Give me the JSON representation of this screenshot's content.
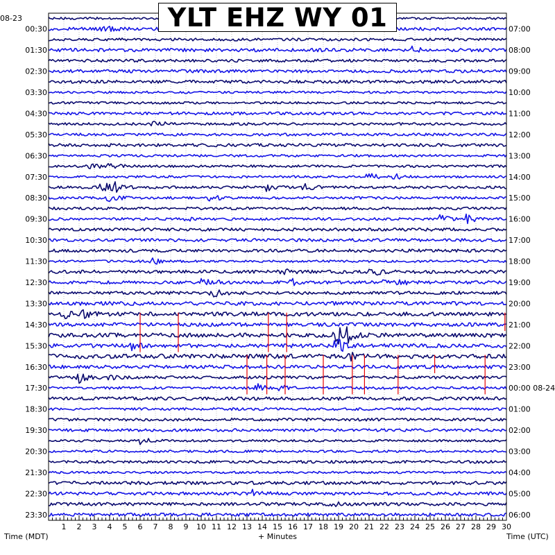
{
  "title": "YLT EHZ WY 01",
  "left_date": "08-23",
  "xlabel_left": "Time (MDT)",
  "xlabel_center": "+ Minutes",
  "xlabel_right": "Time (UTC)",
  "chart_data": {
    "type": "line",
    "subtype": "helicorder",
    "title": "YLT EHZ WY 01",
    "xlabel": "+ Minutes",
    "xlim": [
      0,
      30
    ],
    "x_ticks": [
      1,
      2,
      3,
      4,
      5,
      6,
      7,
      8,
      9,
      10,
      11,
      12,
      13,
      14,
      15,
      16,
      17,
      18,
      19,
      20,
      21,
      22,
      23,
      24,
      25,
      26,
      27,
      28,
      29,
      30
    ],
    "rows": 48,
    "row_minutes": 30,
    "left_labels": [
      "00:30",
      "01:30",
      "02:30",
      "03:30",
      "04:30",
      "05:30",
      "06:30",
      "07:30",
      "08:30",
      "09:30",
      "10:30",
      "11:30",
      "12:30",
      "13:30",
      "14:30",
      "15:30",
      "16:30",
      "17:30",
      "18:30",
      "19:30",
      "20:30",
      "21:30",
      "22:30",
      "23:30"
    ],
    "right_labels": [
      "07:00",
      "08:00",
      "09:00",
      "10:00",
      "11:00",
      "12:00",
      "13:00",
      "14:00",
      "15:00",
      "16:00",
      "17:00",
      "18:00",
      "19:00",
      "20:00",
      "21:00",
      "22:00",
      "23:00",
      "00:00 08-24",
      "01:00",
      "02:00",
      "03:00",
      "04:00",
      "05:00",
      "06:00"
    ],
    "trace_colors": [
      "#0a0a6e",
      "#1414e6"
    ],
    "marker_color": "#e60000",
    "events": [
      {
        "row": 1,
        "minute": 3.4,
        "amp": 6
      },
      {
        "row": 3,
        "minute": 23.8,
        "amp": 4
      },
      {
        "row": 10,
        "minute": 6.9,
        "amp": 6
      },
      {
        "row": 14,
        "minute": 2.6,
        "amp": 7
      },
      {
        "row": 14,
        "minute": 4.1,
        "amp": 5
      },
      {
        "row": 15,
        "minute": 20.9,
        "amp": 6
      },
      {
        "row": 15,
        "minute": 22.6,
        "amp": 5
      },
      {
        "row": 16,
        "minute": 3.5,
        "amp": 9
      },
      {
        "row": 16,
        "minute": 4.3,
        "amp": 6
      },
      {
        "row": 16,
        "minute": 14.2,
        "amp": 5
      },
      {
        "row": 16,
        "minute": 16.8,
        "amp": 6
      },
      {
        "row": 17,
        "minute": 4.0,
        "amp": 8
      },
      {
        "row": 17,
        "minute": 10.5,
        "amp": 6
      },
      {
        "row": 19,
        "minute": 8.6,
        "amp": 6
      },
      {
        "row": 19,
        "minute": 25.6,
        "amp": 6
      },
      {
        "row": 19,
        "minute": 27.3,
        "amp": 7
      },
      {
        "row": 23,
        "minute": 6.8,
        "amp": 5
      },
      {
        "row": 24,
        "minute": 15.2,
        "amp": 5
      },
      {
        "row": 24,
        "minute": 21.2,
        "amp": 5
      },
      {
        "row": 25,
        "minute": 10.2,
        "amp": 10
      },
      {
        "row": 25,
        "minute": 16.0,
        "amp": 6
      },
      {
        "row": 25,
        "minute": 21.5,
        "amp": 5
      },
      {
        "row": 25,
        "minute": 23.0,
        "amp": 5
      },
      {
        "row": 26,
        "minute": 10.6,
        "amp": 8
      },
      {
        "row": 28,
        "minute": 1.0,
        "amp": 6
      },
      {
        "row": 28,
        "minute": 2.2,
        "amp": 5
      },
      {
        "row": 30,
        "minute": 18.8,
        "amp": 16
      },
      {
        "row": 30,
        "minute": 19.5,
        "amp": 9
      },
      {
        "row": 31,
        "minute": 5.4,
        "amp": 5
      },
      {
        "row": 31,
        "minute": 18.9,
        "amp": 12
      },
      {
        "row": 32,
        "minute": 19.6,
        "amp": 6
      },
      {
        "row": 34,
        "minute": 2.0,
        "amp": 7
      },
      {
        "row": 34,
        "minute": 3.8,
        "amp": 5
      },
      {
        "row": 35,
        "minute": 13.6,
        "amp": 7
      },
      {
        "row": 35,
        "minute": 15.0,
        "amp": 5
      },
      {
        "row": 40,
        "minute": 6.0,
        "amp": 5
      },
      {
        "row": 45,
        "minute": 13.3,
        "amp": 5
      },
      {
        "row": 46,
        "minute": 18.5,
        "amp": 4
      }
    ],
    "red_markers": [
      {
        "row": 28,
        "minute": 6.0,
        "rows_spanned": 4
      },
      {
        "row": 28,
        "minute": 8.5,
        "rows_spanned": 4
      },
      {
        "row": 28,
        "minute": 14.4,
        "rows_spanned": 4
      },
      {
        "row": 28,
        "minute": 15.6,
        "rows_spanned": 4
      },
      {
        "row": 28,
        "minute": 29.9,
        "rows_spanned": 2
      },
      {
        "row": 32,
        "minute": 13.0,
        "rows_spanned": 4
      },
      {
        "row": 32,
        "minute": 14.3,
        "rows_spanned": 4
      },
      {
        "row": 32,
        "minute": 15.5,
        "rows_spanned": 4
      },
      {
        "row": 32,
        "minute": 18.0,
        "rows_spanned": 4
      },
      {
        "row": 32,
        "minute": 19.9,
        "rows_spanned": 4
      },
      {
        "row": 32,
        "minute": 20.7,
        "rows_spanned": 4
      },
      {
        "row": 32,
        "minute": 22.9,
        "rows_spanned": 4
      },
      {
        "row": 32,
        "minute": 25.3,
        "rows_spanned": 2
      },
      {
        "row": 32,
        "minute": 28.6,
        "rows_spanned": 4
      }
    ]
  }
}
